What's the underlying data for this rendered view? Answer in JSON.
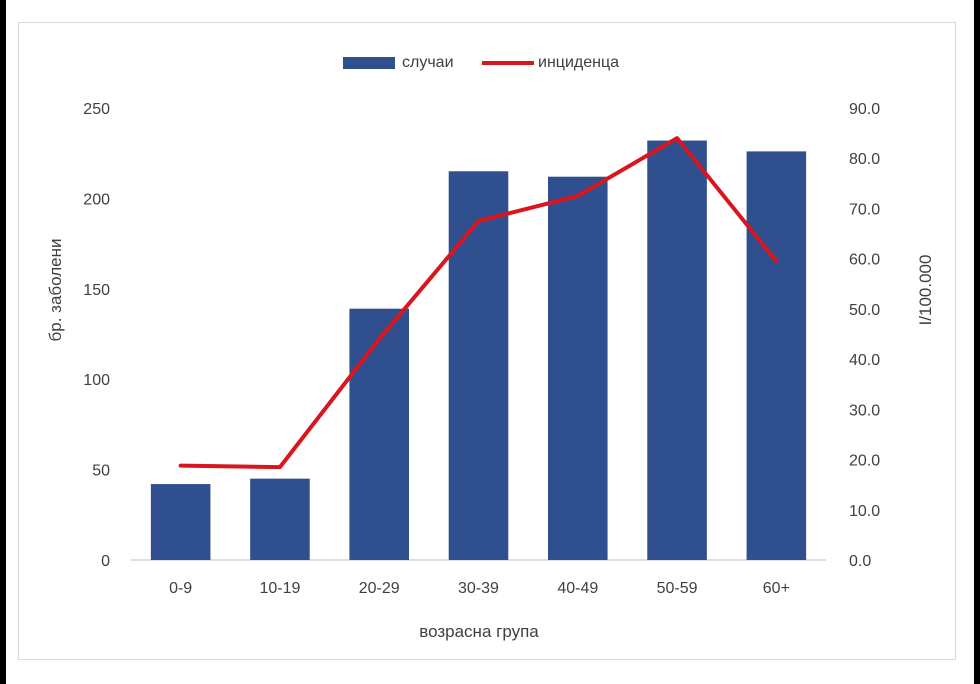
{
  "chart_data": {
    "type": "bar+line",
    "categories": [
      "0-9",
      "10-19",
      "20-29",
      "30-39",
      "40-49",
      "50-59",
      "60+"
    ],
    "series": [
      {
        "name": "случаи",
        "type": "bar",
        "axis": "left",
        "color": "#2f4f8f",
        "values": [
          42,
          45,
          139,
          215,
          212,
          232,
          226
        ]
      },
      {
        "name": "инциденца",
        "type": "line",
        "axis": "right",
        "color": "#d9151d",
        "values": [
          18.8,
          18.5,
          44.0,
          67.5,
          72.5,
          84.0,
          59.5
        ]
      }
    ],
    "xlabel": "возрасна група",
    "ylabel_left": "бр. заболени",
    "ylabel_right": "I/100.000",
    "ylim_left": [
      0,
      250
    ],
    "ylim_right": [
      0,
      90
    ],
    "yticks_left": [
      "0",
      "50",
      "100",
      "150",
      "200",
      "250"
    ],
    "yticks_right": [
      "0.0",
      "10.0",
      "20.0",
      "30.0",
      "40.0",
      "50.0",
      "60.0",
      "70.0",
      "80.0",
      "90.0"
    ],
    "legend": {
      "position": "top"
    },
    "grid": false
  }
}
